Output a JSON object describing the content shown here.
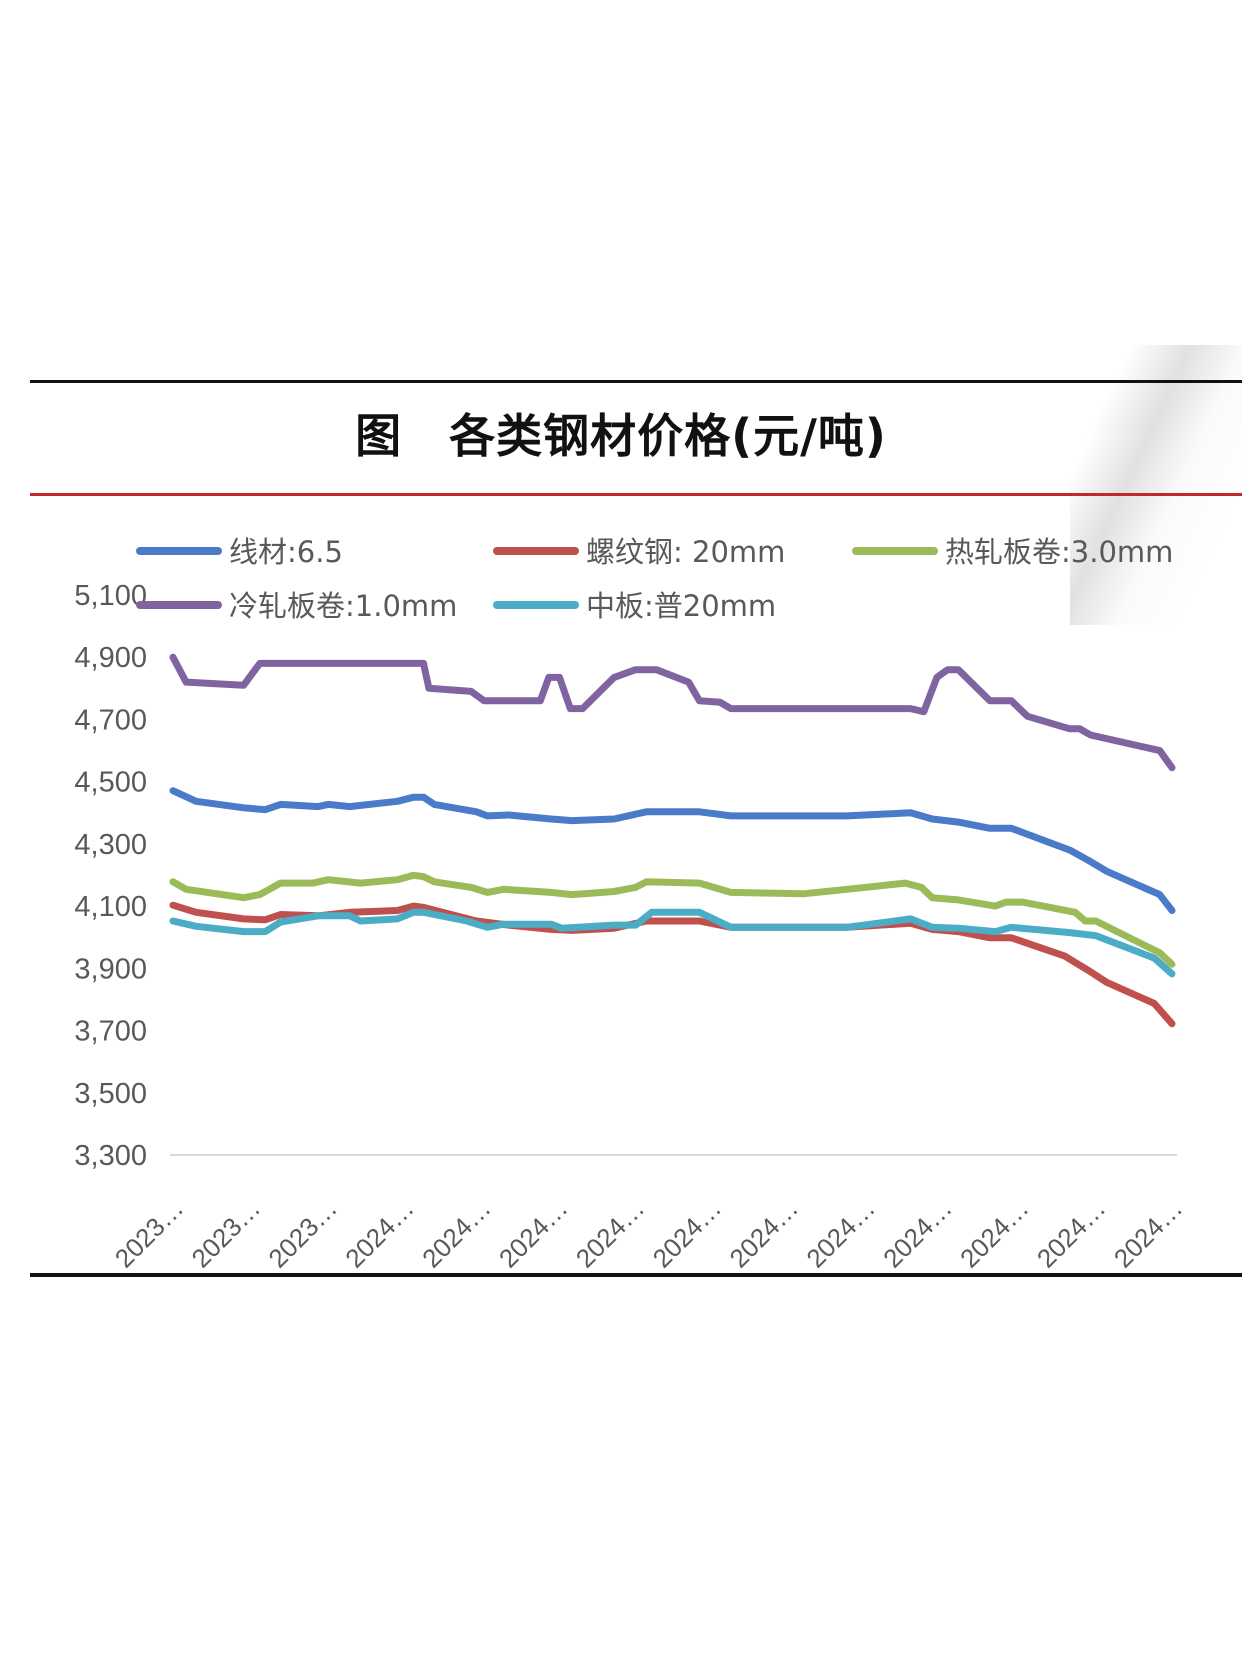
{
  "title": "图　各类钢材价格(元/吨)",
  "chart_data": {
    "type": "line",
    "title": "图　各类钢材价格(元/吨)",
    "xlabel": "",
    "ylabel": "",
    "ylim": [
      3300,
      5100
    ],
    "yticks": [
      3300,
      3500,
      3700,
      3900,
      4100,
      4300,
      4500,
      4700,
      4900,
      5100
    ],
    "ytick_labels": [
      "3,300",
      "3,500",
      "3,700",
      "3,900",
      "4,100",
      "4,300",
      "4,500",
      "4,700",
      "4,900",
      "5,100"
    ],
    "categories": [
      "2023…",
      "2023…",
      "2023…",
      "2024…",
      "2024…",
      "2024…",
      "2024…",
      "2024…",
      "2024…",
      "2024…",
      "2024…",
      "2024…",
      "2024…",
      "2024…"
    ],
    "grid": "baseline only",
    "legend": "top",
    "series": [
      {
        "name": "线材:6.5",
        "color": "#4a7bc8",
        "points": [
          [
            0,
            4471
          ],
          [
            0.3,
            4437
          ],
          [
            0.92,
            4416
          ],
          [
            1.2,
            4410
          ],
          [
            1.4,
            4427
          ],
          [
            1.89,
            4420
          ],
          [
            2.02,
            4427
          ],
          [
            2.3,
            4420
          ],
          [
            2.92,
            4437
          ],
          [
            3.13,
            4450
          ],
          [
            3.26,
            4450
          ],
          [
            3.4,
            4427
          ],
          [
            3.95,
            4403
          ],
          [
            4.09,
            4390
          ],
          [
            4.37,
            4393
          ],
          [
            4.92,
            4380
          ],
          [
            5.19,
            4375
          ],
          [
            5.74,
            4380
          ],
          [
            6.16,
            4403
          ],
          [
            6.85,
            4403
          ],
          [
            7.26,
            4390
          ],
          [
            8.77,
            4390
          ],
          [
            9.6,
            4400
          ],
          [
            9.88,
            4380
          ],
          [
            10.22,
            4370
          ],
          [
            10.63,
            4350
          ],
          [
            10.91,
            4350
          ],
          [
            11.67,
            4280
          ],
          [
            11.94,
            4243
          ],
          [
            12.15,
            4212
          ],
          [
            12.84,
            4137
          ],
          [
            13,
            4086
          ]
        ]
      },
      {
        "name": "螺纹钢: 20mm",
        "color": "#c0504d",
        "points": [
          [
            0,
            4103
          ],
          [
            0.3,
            4080
          ],
          [
            0.92,
            4059
          ],
          [
            1.2,
            4056
          ],
          [
            1.4,
            4073
          ],
          [
            1.89,
            4069
          ],
          [
            2.3,
            4080
          ],
          [
            2.92,
            4086
          ],
          [
            3.13,
            4100
          ],
          [
            3.26,
            4096
          ],
          [
            3.95,
            4052
          ],
          [
            4.37,
            4039
          ],
          [
            4.92,
            4025
          ],
          [
            5.19,
            4022
          ],
          [
            5.74,
            4029
          ],
          [
            6.16,
            4052
          ],
          [
            6.85,
            4052
          ],
          [
            7.26,
            4032
          ],
          [
            8.77,
            4032
          ],
          [
            9.6,
            4045
          ],
          [
            9.88,
            4025
          ],
          [
            10.22,
            4018
          ],
          [
            10.63,
            3998
          ],
          [
            10.91,
            3998
          ],
          [
            11.6,
            3940
          ],
          [
            11.94,
            3889
          ],
          [
            12.15,
            3855
          ],
          [
            12.77,
            3787
          ],
          [
            13,
            3722
          ]
        ]
      },
      {
        "name": "热轧板卷:3.0mm",
        "color": "#9bbb59",
        "points": [
          [
            0,
            4178
          ],
          [
            0.17,
            4154
          ],
          [
            0.92,
            4127
          ],
          [
            1.13,
            4137
          ],
          [
            1.4,
            4174
          ],
          [
            1.82,
            4174
          ],
          [
            2.02,
            4185
          ],
          [
            2.44,
            4174
          ],
          [
            2.92,
            4185
          ],
          [
            3.13,
            4199
          ],
          [
            3.26,
            4195
          ],
          [
            3.4,
            4178
          ],
          [
            3.88,
            4160
          ],
          [
            4.09,
            4144
          ],
          [
            4.3,
            4154
          ],
          [
            4.92,
            4144
          ],
          [
            5.19,
            4137
          ],
          [
            5.74,
            4147
          ],
          [
            6.02,
            4160
          ],
          [
            6.16,
            4178
          ],
          [
            6.85,
            4174
          ],
          [
            7.26,
            4144
          ],
          [
            8.22,
            4140
          ],
          [
            8.77,
            4154
          ],
          [
            9.53,
            4174
          ],
          [
            9.74,
            4160
          ],
          [
            9.88,
            4127
          ],
          [
            10.22,
            4120
          ],
          [
            10.7,
            4100
          ],
          [
            10.84,
            4113
          ],
          [
            11.05,
            4113
          ],
          [
            11.74,
            4080
          ],
          [
            11.87,
            4052
          ],
          [
            12.01,
            4052
          ],
          [
            12.84,
            3950
          ],
          [
            13,
            3913
          ]
        ]
      },
      {
        "name": "冷轧板卷:1.0mm",
        "color": "#8064a2",
        "points": [
          [
            0,
            4900
          ],
          [
            0.17,
            4820
          ],
          [
            0.92,
            4810
          ],
          [
            1.13,
            4880
          ],
          [
            3.26,
            4880
          ],
          [
            3.33,
            4800
          ],
          [
            3.88,
            4790
          ],
          [
            4.05,
            4760
          ],
          [
            4.78,
            4760
          ],
          [
            4.89,
            4835
          ],
          [
            5.03,
            4835
          ],
          [
            5.17,
            4735
          ],
          [
            5.33,
            4735
          ],
          [
            5.74,
            4835
          ],
          [
            6.02,
            4860
          ],
          [
            6.29,
            4860
          ],
          [
            6.71,
            4820
          ],
          [
            6.85,
            4760
          ],
          [
            7.12,
            4755
          ],
          [
            7.26,
            4735
          ],
          [
            9.6,
            4735
          ],
          [
            9.77,
            4725
          ],
          [
            9.94,
            4835
          ],
          [
            10.08,
            4860
          ],
          [
            10.22,
            4860
          ],
          [
            10.63,
            4760
          ],
          [
            10.91,
            4760
          ],
          [
            11.12,
            4710
          ],
          [
            11.67,
            4670
          ],
          [
            11.8,
            4670
          ],
          [
            11.94,
            4650
          ],
          [
            12.84,
            4600
          ],
          [
            13,
            4545
          ]
        ]
      },
      {
        "name": "中板:普20mm",
        "color": "#4bacc6",
        "points": [
          [
            0,
            4052
          ],
          [
            0.3,
            4035
          ],
          [
            0.92,
            4018
          ],
          [
            1.2,
            4018
          ],
          [
            1.4,
            4049
          ],
          [
            1.89,
            4069
          ],
          [
            2.3,
            4069
          ],
          [
            2.44,
            4052
          ],
          [
            2.92,
            4059
          ],
          [
            3.13,
            4080
          ],
          [
            3.26,
            4080
          ],
          [
            3.82,
            4052
          ],
          [
            4.09,
            4032
          ],
          [
            4.3,
            4042
          ],
          [
            4.92,
            4042
          ],
          [
            5.06,
            4029
          ],
          [
            5.74,
            4039
          ],
          [
            6.02,
            4039
          ],
          [
            6.23,
            4080
          ],
          [
            6.85,
            4080
          ],
          [
            7.26,
            4032
          ],
          [
            8.77,
            4032
          ],
          [
            9.6,
            4059
          ],
          [
            9.88,
            4032
          ],
          [
            10.22,
            4029
          ],
          [
            10.7,
            4018
          ],
          [
            10.91,
            4032
          ],
          [
            11.67,
            4015
          ],
          [
            12.01,
            4005
          ],
          [
            12.77,
            3933
          ],
          [
            13,
            3882
          ]
        ]
      }
    ]
  }
}
